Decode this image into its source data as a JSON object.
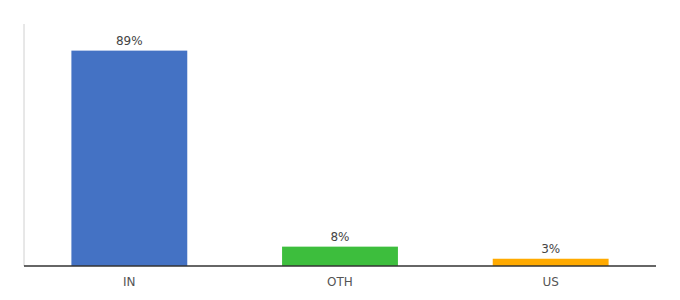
{
  "chart_data": {
    "type": "bar",
    "categories": [
      "IN",
      "OTH",
      "US"
    ],
    "values": [
      89,
      8,
      3
    ],
    "value_labels": [
      "89%",
      "8%",
      "3%"
    ],
    "colors": [
      "#4472c4",
      "#3dbe3d",
      "#ffaa00"
    ],
    "ylim": [
      0,
      100
    ],
    "data_labels": true,
    "tick_labels": "x"
  }
}
